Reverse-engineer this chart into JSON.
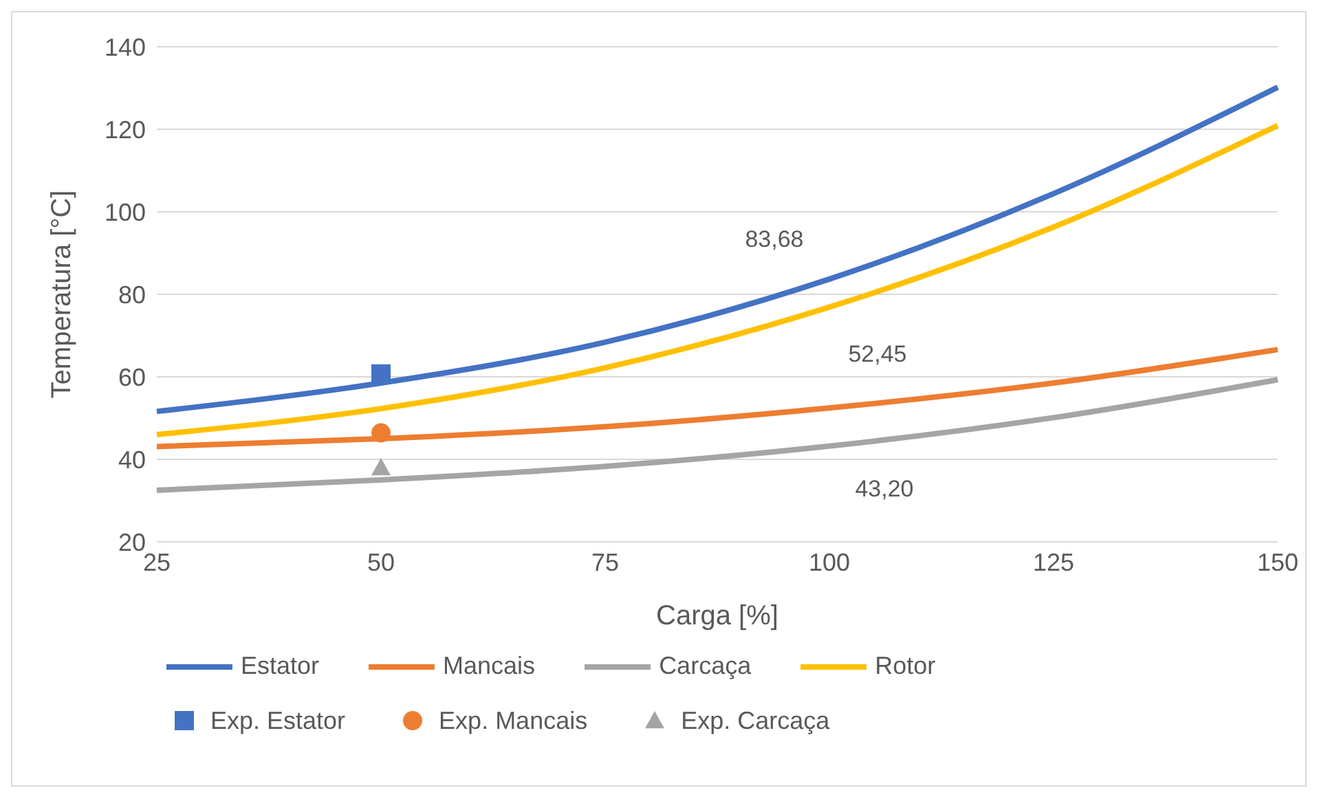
{
  "chart_data": {
    "type": "line",
    "xlabel": "Carga [%]",
    "ylabel": "Temperatura [°C]",
    "categories": [
      "25",
      "50",
      "75",
      "100",
      "125",
      "150"
    ],
    "ylim": [
      20,
      140
    ],
    "yticks": [
      20,
      40,
      60,
      80,
      100,
      120,
      140
    ],
    "grid": "y",
    "legend": "bottom",
    "line_style": "solid",
    "series": [
      {
        "name": "Estator",
        "color": "#4472c4",
        "values": [
          51.6,
          58.5,
          68.4,
          83.68,
          104.4,
          130.2
        ],
        "value_labels": [
          null,
          null,
          null,
          "83,68",
          null,
          null
        ]
      },
      {
        "name": "Mancais",
        "color": "#ed7d31",
        "values": [
          43.1,
          45,
          47.9,
          52.45,
          58.5,
          66.6
        ],
        "value_labels": [
          null,
          null,
          null,
          "52,45",
          null,
          null
        ]
      },
      {
        "name": "Carcaça",
        "color": "#a5a5a5",
        "values": [
          32.5,
          35,
          38.3,
          43.2,
          50.1,
          59.3
        ],
        "value_labels": [
          null,
          null,
          null,
          "43,20",
          null,
          null
        ]
      },
      {
        "name": "Rotor",
        "color": "#ffc000",
        "values": [
          46,
          52.3,
          62.2,
          76.9,
          96.3,
          120.9
        ]
      },
      {
        "name": "Exp. Estator",
        "type": "scatter",
        "marker": "square",
        "color": "#4472c4",
        "x": [
          "50"
        ],
        "values": [
          60.7
        ]
      },
      {
        "name": "Exp. Mancais",
        "type": "scatter",
        "marker": "circle",
        "color": "#ed7d31",
        "x": [
          "50"
        ],
        "values": [
          46.4
        ]
      },
      {
        "name": "Exp. Carcaça",
        "type": "scatter",
        "marker": "triangle",
        "color": "#a5a5a5",
        "x": [
          "50"
        ],
        "values": [
          38
        ]
      }
    ]
  }
}
